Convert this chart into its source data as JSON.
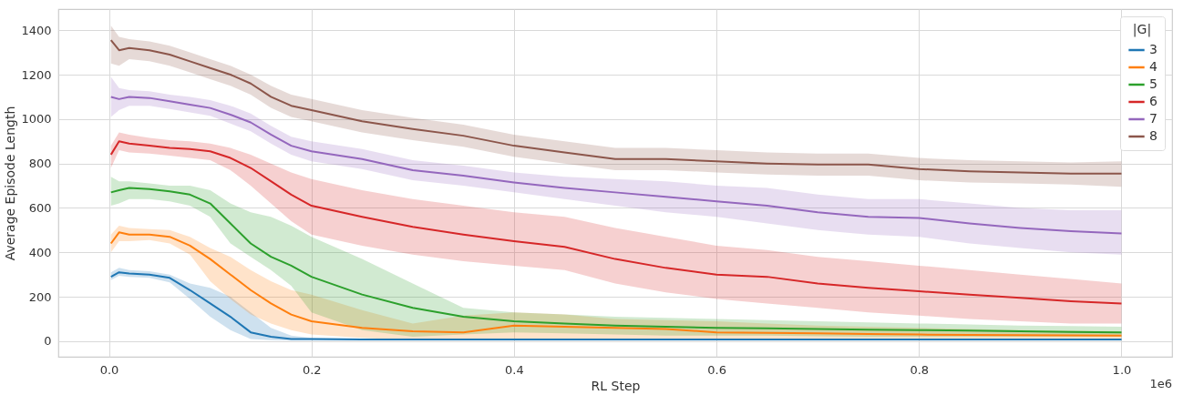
{
  "chart_data": {
    "type": "line",
    "xlabel": "RL Step",
    "ylabel": "Average Episode Length",
    "legend_title": "|G|",
    "legend": "top right",
    "grid": true,
    "line_style": "solid",
    "annotations": [
      "1e6"
    ],
    "xlim": [
      -0.05,
      1.05
    ],
    "xticks": [
      {
        "value": 0,
        "label": "0.0"
      },
      0.2,
      0.4,
      0.6,
      0.8,
      {
        "value": 1,
        "label": "1.0"
      }
    ],
    "ylim": [
      -70,
      1495
    ],
    "yticks": [
      0,
      200,
      400,
      600,
      800,
      1000,
      1200,
      1400
    ],
    "x": [
      0.002,
      0.01,
      0.02,
      0.04,
      0.06,
      0.08,
      0.1,
      0.12,
      0.14,
      0.16,
      0.18,
      0.2,
      0.25,
      0.3,
      0.35,
      0.4,
      0.45,
      0.5,
      0.55,
      0.6,
      0.65,
      0.7,
      0.75,
      0.8,
      0.85,
      0.9,
      0.95,
      1.0
    ],
    "series": [
      {
        "name": "3",
        "color": "#1f77b4",
        "values": [
          290,
          310,
          305,
          300,
          285,
          230,
          170,
          110,
          40,
          20,
          10,
          10,
          8,
          8,
          8,
          8,
          8,
          8,
          8,
          8,
          8,
          8,
          8,
          8,
          8,
          8,
          8,
          8
        ],
        "lower": [
          275,
          295,
          290,
          285,
          265,
          190,
          110,
          50,
          10,
          5,
          3,
          3,
          3,
          3,
          3,
          3,
          3,
          3,
          3,
          3,
          3,
          3,
          3,
          3,
          3,
          3,
          3,
          3
        ],
        "upper": [
          310,
          330,
          320,
          315,
          300,
          260,
          240,
          200,
          130,
          60,
          25,
          15,
          12,
          12,
          12,
          12,
          12,
          12,
          12,
          12,
          12,
          12,
          12,
          12,
          12,
          12,
          12,
          12
        ]
      },
      {
        "name": "4",
        "color": "#ff7f0e",
        "values": [
          440,
          490,
          480,
          480,
          470,
          430,
          370,
          300,
          230,
          170,
          120,
          90,
          60,
          45,
          40,
          70,
          65,
          60,
          55,
          40,
          38,
          35,
          32,
          30,
          28,
          27,
          26,
          25
        ],
        "lower": [
          400,
          450,
          450,
          455,
          440,
          390,
          270,
          190,
          120,
          80,
          50,
          30,
          15,
          5,
          10,
          10,
          10,
          10,
          10,
          10,
          10,
          10,
          10,
          10,
          10,
          10,
          10,
          10
        ],
        "upper": [
          480,
          520,
          510,
          505,
          500,
          470,
          420,
          380,
          320,
          270,
          230,
          210,
          140,
          80,
          115,
          130,
          120,
          100,
          95,
          90,
          80,
          70,
          65,
          60,
          55,
          50,
          48,
          45
        ]
      },
      {
        "name": "5",
        "color": "#2ca02c",
        "values": [
          670,
          680,
          690,
          685,
          675,
          660,
          620,
          530,
          440,
          380,
          340,
          290,
          210,
          150,
          110,
          90,
          80,
          70,
          65,
          60,
          58,
          55,
          52,
          50,
          48,
          45,
          42,
          40
        ],
        "lower": [
          610,
          620,
          640,
          640,
          630,
          610,
          560,
          440,
          380,
          320,
          250,
          130,
          50,
          20,
          30,
          40,
          35,
          30,
          25,
          25,
          25,
          22,
          20,
          20,
          20,
          20,
          20,
          20
        ],
        "upper": [
          740,
          720,
          720,
          710,
          700,
          700,
          680,
          620,
          580,
          560,
          520,
          470,
          370,
          260,
          150,
          130,
          120,
          110,
          105,
          100,
          95,
          90,
          85,
          80,
          75,
          70,
          68,
          65
        ]
      },
      {
        "name": "6",
        "color": "#d62728",
        "values": [
          840,
          900,
          890,
          880,
          870,
          865,
          855,
          825,
          780,
          720,
          660,
          610,
          560,
          515,
          480,
          450,
          425,
          370,
          330,
          300,
          290,
          260,
          240,
          225,
          210,
          195,
          180,
          170
        ],
        "lower": [
          780,
          860,
          850,
          845,
          835,
          825,
          815,
          770,
          700,
          620,
          540,
          480,
          430,
          390,
          360,
          340,
          320,
          260,
          220,
          190,
          170,
          150,
          130,
          115,
          100,
          90,
          80,
          80
        ],
        "upper": [
          880,
          940,
          930,
          915,
          905,
          900,
          890,
          870,
          840,
          800,
          760,
          730,
          680,
          640,
          610,
          580,
          560,
          510,
          470,
          430,
          410,
          380,
          360,
          340,
          320,
          300,
          280,
          260
        ]
      },
      {
        "name": "7",
        "color": "#9467bd",
        "values": [
          1100,
          1090,
          1100,
          1095,
          1080,
          1065,
          1050,
          1020,
          985,
          930,
          880,
          855,
          820,
          770,
          745,
          715,
          690,
          670,
          650,
          630,
          610,
          580,
          560,
          555,
          530,
          510,
          495,
          485
        ],
        "lower": [
          1010,
          1040,
          1060,
          1060,
          1045,
          1030,
          1015,
          980,
          945,
          890,
          840,
          810,
          775,
          725,
          700,
          670,
          640,
          610,
          580,
          560,
          530,
          500,
          480,
          470,
          440,
          420,
          400,
          390
        ],
        "upper": [
          1190,
          1140,
          1130,
          1125,
          1110,
          1100,
          1085,
          1060,
          1025,
          970,
          920,
          900,
          865,
          815,
          790,
          760,
          740,
          730,
          720,
          700,
          690,
          660,
          640,
          640,
          620,
          600,
          590,
          590
        ]
      },
      {
        "name": "8",
        "color": "#8c564b",
        "values": [
          1355,
          1310,
          1320,
          1310,
          1290,
          1260,
          1230,
          1200,
          1160,
          1100,
          1060,
          1040,
          990,
          955,
          925,
          880,
          850,
          820,
          820,
          810,
          800,
          795,
          795,
          775,
          765,
          760,
          755,
          755
        ],
        "lower": [
          1250,
          1240,
          1270,
          1260,
          1240,
          1210,
          1180,
          1150,
          1110,
          1050,
          1010,
          990,
          940,
          905,
          875,
          830,
          800,
          770,
          770,
          760,
          750,
          745,
          745,
          725,
          715,
          710,
          705,
          695
        ],
        "upper": [
          1420,
          1370,
          1360,
          1350,
          1330,
          1300,
          1270,
          1240,
          1200,
          1150,
          1110,
          1090,
          1040,
          1005,
          975,
          930,
          900,
          870,
          870,
          860,
          850,
          845,
          845,
          825,
          815,
          810,
          805,
          810
        ]
      }
    ]
  }
}
